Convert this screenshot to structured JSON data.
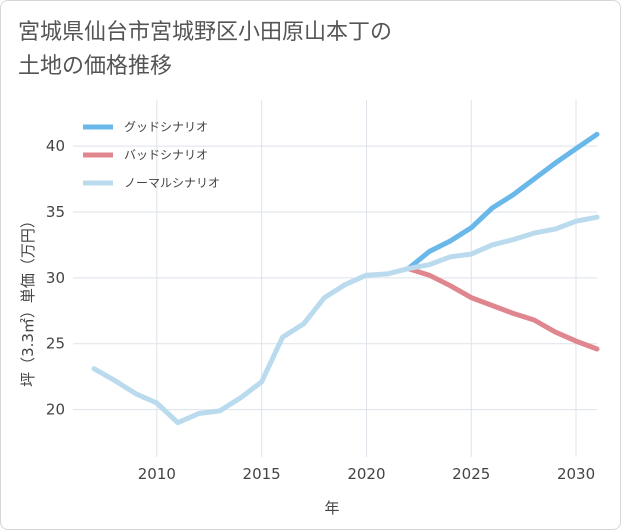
{
  "chart_data": {
    "type": "line",
    "title": "宮城県仙台市宮城野区小田原山本丁の\n土地の価格推移",
    "xlabel": "年",
    "ylabel": "坪（3.3㎡）単価（万円）",
    "xlim": [
      2006,
      2031
    ],
    "ylim": [
      16.4,
      43.5
    ],
    "x_ticks": [
      2010,
      2015,
      2020,
      2025,
      2030
    ],
    "y_ticks": [
      20,
      25,
      30,
      35,
      40
    ],
    "grid": true,
    "legend_position": "top-left",
    "series": [
      {
        "name": "グッドシナリオ",
        "color": "#6ab8ea",
        "x": [
          2022,
          2023,
          2024,
          2025,
          2026,
          2027,
          2028,
          2029,
          2030,
          2031
        ],
        "y": [
          30.7,
          32.0,
          32.8,
          33.8,
          35.3,
          36.3,
          37.5,
          38.7,
          39.8,
          40.9
        ]
      },
      {
        "name": "バッドシナリオ",
        "color": "#e0868f",
        "x": [
          2022,
          2023,
          2024,
          2025,
          2026,
          2027,
          2028,
          2029,
          2030,
          2031
        ],
        "y": [
          30.7,
          30.2,
          29.4,
          28.5,
          27.9,
          27.3,
          26.8,
          25.9,
          25.2,
          24.6
        ]
      },
      {
        "name": "ノーマルシナリオ",
        "color": "#b9dbed",
        "x": [
          2007,
          2008,
          2009,
          2010,
          2011,
          2012,
          2013,
          2014,
          2015,
          2016,
          2017,
          2018,
          2019,
          2020,
          2021,
          2022,
          2023,
          2024,
          2025,
          2026,
          2027,
          2028,
          2029,
          2030,
          2031
        ],
        "y": [
          23.1,
          22.2,
          21.2,
          20.5,
          19.0,
          19.7,
          19.9,
          20.9,
          22.1,
          25.5,
          26.5,
          28.5,
          29.5,
          30.2,
          30.3,
          30.7,
          31.0,
          31.6,
          31.8,
          32.5,
          32.9,
          33.4,
          33.7,
          34.3,
          34.6
        ]
      }
    ]
  }
}
